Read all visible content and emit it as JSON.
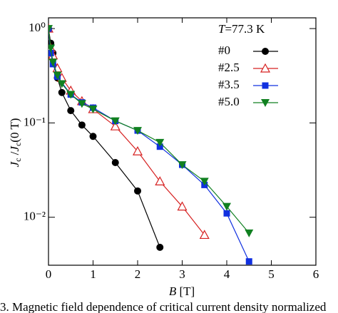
{
  "chart_data": {
    "type": "line",
    "annotation": [
      "T",
      "=77.3 K"
    ],
    "x_label": [
      "B",
      " [T]"
    ],
    "y_label": [
      "J",
      "c",
      " /",
      "J",
      "c",
      "(0 T)"
    ],
    "caption": "3.   Magnetic field dependence of critical current density normalized",
    "xlim": [
      0,
      6
    ],
    "xticks": [
      0,
      1,
      2,
      3,
      4,
      5,
      6
    ],
    "ylim": [
      0.0031,
      1.3
    ],
    "log_y": true,
    "yticks": [
      {
        "value": 0.01,
        "label": "10⁻²"
      },
      {
        "value": 0.1,
        "label": "10⁻¹"
      },
      {
        "value": 1,
        "label": "10⁰"
      }
    ],
    "legend": "upper right",
    "series": [
      {
        "name": "#0",
        "color": "#000000",
        "marker": "circle",
        "x": [
          0,
          0.05,
          0.1,
          0.2,
          0.3,
          0.5,
          0.75,
          1.0,
          1.5,
          2.0,
          2.5
        ],
        "values": [
          1.0,
          0.7,
          0.55,
          0.3,
          0.21,
          0.135,
          0.095,
          0.072,
          0.038,
          0.019,
          0.0048
        ]
      },
      {
        "name": "#2.5",
        "color": "#d62020",
        "marker": "triangle-open",
        "x": [
          0,
          0.05,
          0.1,
          0.2,
          0.3,
          0.5,
          0.75,
          1.0,
          1.5,
          2.0,
          2.5,
          3.0,
          3.5
        ],
        "values": [
          1.0,
          0.62,
          0.52,
          0.38,
          0.3,
          0.22,
          0.17,
          0.14,
          0.092,
          0.05,
          0.024,
          0.013,
          0.0065
        ]
      },
      {
        "name": "#3.5",
        "color": "#1030e0",
        "marker": "square",
        "x": [
          0,
          0.05,
          0.1,
          0.2,
          0.5,
          0.75,
          1.0,
          1.5,
          2.0,
          2.5,
          3.0,
          3.5,
          4.0,
          4.5
        ],
        "values": [
          1.0,
          0.55,
          0.42,
          0.31,
          0.2,
          0.165,
          0.145,
          0.105,
          0.083,
          0.056,
          0.036,
          0.022,
          0.011,
          0.0034
        ]
      },
      {
        "name": "#5.0",
        "color": "#108020",
        "marker": "triangle-down",
        "x": [
          0,
          0.05,
          0.1,
          0.2,
          0.3,
          0.5,
          0.75,
          1.0,
          1.5,
          2.0,
          2.5,
          3.0,
          3.5,
          4.0,
          4.5
        ],
        "values": [
          1.0,
          0.62,
          0.44,
          0.32,
          0.26,
          0.2,
          0.16,
          0.14,
          0.105,
          0.083,
          0.062,
          0.036,
          0.024,
          0.013,
          0.0068
        ]
      }
    ]
  }
}
